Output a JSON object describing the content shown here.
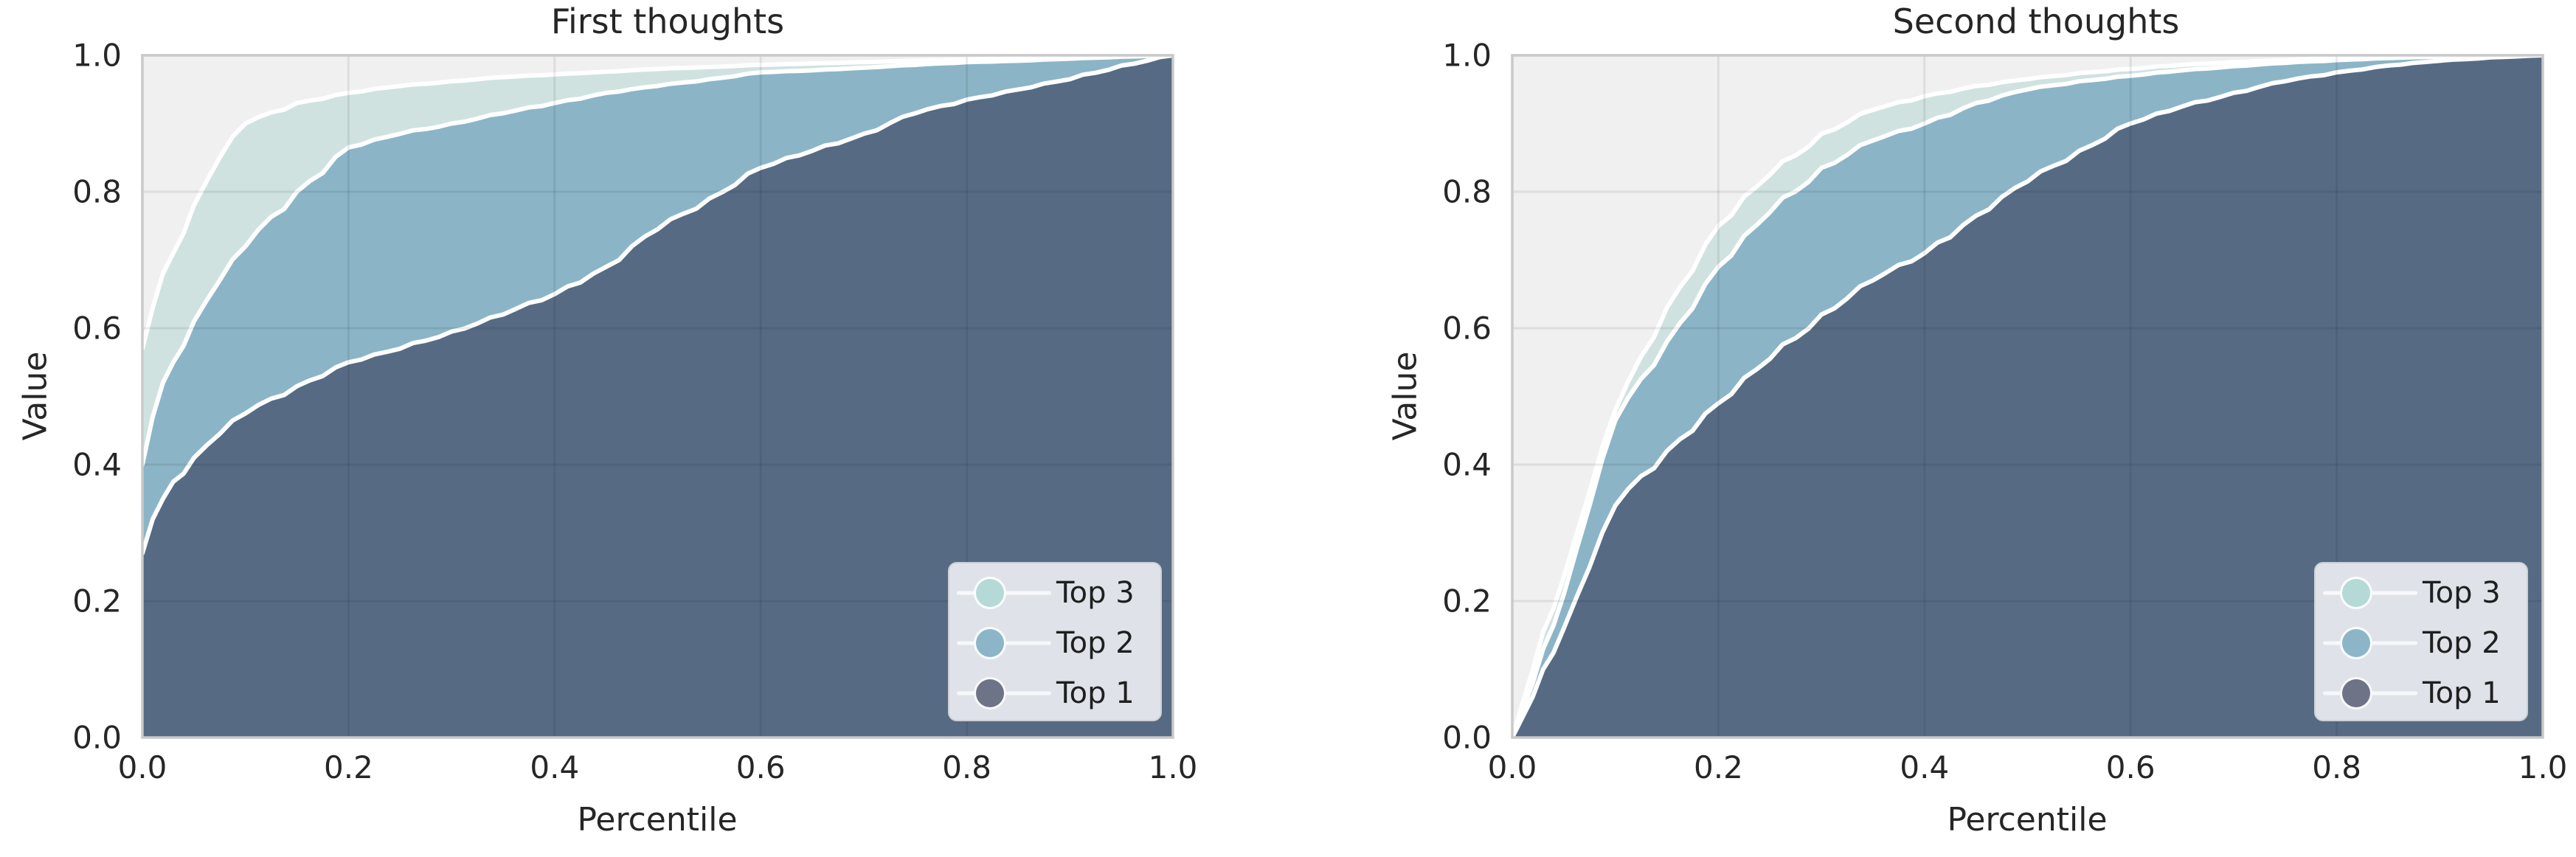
{
  "figure": {
    "background": "#ffffff",
    "text_color": "#262626"
  },
  "style": {
    "plot_bg": "#f0f0f0",
    "grid_color": "rgba(0,0,0,0.08)",
    "spine_color": "#c9c9c9",
    "curve_line_color": "#ffffff",
    "legend_bg": "#eaeef2",
    "legend_border": "#ccd1d6"
  },
  "chart_data": [
    {
      "type": "area",
      "title": "First thoughts",
      "xlabel": "Percentile",
      "ylabel": "Value",
      "xlim": [
        0.0,
        1.0
      ],
      "ylim": [
        0.0,
        1.0
      ],
      "xticks": [
        "0.0",
        "0.2",
        "0.4",
        "0.6",
        "0.8",
        "1.0"
      ],
      "yticks": [
        "0.0",
        "0.2",
        "0.4",
        "0.6",
        "0.8",
        "1.0"
      ],
      "grid": true,
      "legend_position": "lower right",
      "x": [
        0,
        0.01,
        0.02,
        0.03,
        0.05,
        0.075,
        0.1,
        0.15,
        0.2,
        0.25,
        0.3,
        0.35,
        0.4,
        0.45,
        0.5,
        0.55,
        0.6,
        0.65,
        0.7,
        0.75,
        0.8,
        0.85,
        0.9,
        0.95,
        1.0
      ],
      "series": [
        {
          "name": "Top 3",
          "fill": "#cfe2e0",
          "marker": "#b5d9d6",
          "values": [
            0.57,
            0.63,
            0.68,
            0.71,
            0.78,
            0.85,
            0.9,
            0.93,
            0.945,
            0.955,
            0.962,
            0.968,
            0.972,
            0.976,
            0.98,
            0.983,
            0.986,
            0.988,
            0.99,
            0.992,
            0.994,
            0.995,
            0.996,
            0.998,
            1.0
          ]
        },
        {
          "name": "Top 2",
          "fill": "#8bb5c6",
          "marker": "#8cb6c7",
          "values": [
            0.4,
            0.47,
            0.52,
            0.55,
            0.61,
            0.67,
            0.72,
            0.8,
            0.865,
            0.885,
            0.9,
            0.915,
            0.93,
            0.945,
            0.955,
            0.965,
            0.975,
            0.978,
            0.982,
            0.986,
            0.99,
            0.992,
            0.995,
            0.998,
            1.0
          ]
        },
        {
          "name": "Top 1",
          "fill": "#566b83",
          "marker": "#6e7487",
          "values": [
            0.27,
            0.32,
            0.35,
            0.375,
            0.41,
            0.445,
            0.475,
            0.515,
            0.55,
            0.57,
            0.595,
            0.62,
            0.65,
            0.69,
            0.745,
            0.79,
            0.835,
            0.86,
            0.885,
            0.915,
            0.935,
            0.95,
            0.965,
            0.985,
            1.0
          ]
        }
      ]
    },
    {
      "type": "area",
      "title": "Second thoughts",
      "xlabel": "Percentile",
      "ylabel": "Value",
      "xlim": [
        0.0,
        1.0
      ],
      "ylim": [
        0.0,
        1.0
      ],
      "xticks": [
        "0.0",
        "0.2",
        "0.4",
        "0.6",
        "0.8",
        "1.0"
      ],
      "yticks": [
        "0.0",
        "0.2",
        "0.4",
        "0.6",
        "0.8",
        "1.0"
      ],
      "grid": true,
      "legend_position": "lower right",
      "x": [
        0,
        0.01,
        0.02,
        0.03,
        0.05,
        0.075,
        0.1,
        0.15,
        0.2,
        0.25,
        0.3,
        0.35,
        0.4,
        0.45,
        0.5,
        0.55,
        0.6,
        0.65,
        0.7,
        0.75,
        0.8,
        0.85,
        0.9,
        0.95,
        1.0
      ],
      "series": [
        {
          "name": "Top 3",
          "fill": "#cfe2e0",
          "marker": "#b5d9d6",
          "values": [
            0.0,
            0.05,
            0.1,
            0.155,
            0.235,
            0.36,
            0.48,
            0.63,
            0.75,
            0.825,
            0.885,
            0.92,
            0.94,
            0.955,
            0.965,
            0.974,
            0.98,
            0.986,
            0.99,
            0.993,
            0.996,
            0.997,
            0.998,
            0.999,
            1.0
          ]
        },
        {
          "name": "Top 2",
          "fill": "#8bb5c6",
          "marker": "#8cb6c7",
          "values": [
            0.0,
            0.04,
            0.08,
            0.13,
            0.21,
            0.34,
            0.465,
            0.58,
            0.69,
            0.77,
            0.835,
            0.875,
            0.9,
            0.93,
            0.95,
            0.962,
            0.97,
            0.978,
            0.984,
            0.989,
            0.993,
            0.996,
            0.998,
            0.999,
            1.0
          ]
        },
        {
          "name": "Top 1",
          "fill": "#566b83",
          "marker": "#6e7487",
          "values": [
            0.0,
            0.03,
            0.06,
            0.1,
            0.16,
            0.25,
            0.34,
            0.42,
            0.49,
            0.555,
            0.62,
            0.67,
            0.71,
            0.765,
            0.815,
            0.86,
            0.9,
            0.925,
            0.945,
            0.962,
            0.975,
            0.985,
            0.992,
            0.997,
            1.0
          ]
        }
      ]
    }
  ]
}
